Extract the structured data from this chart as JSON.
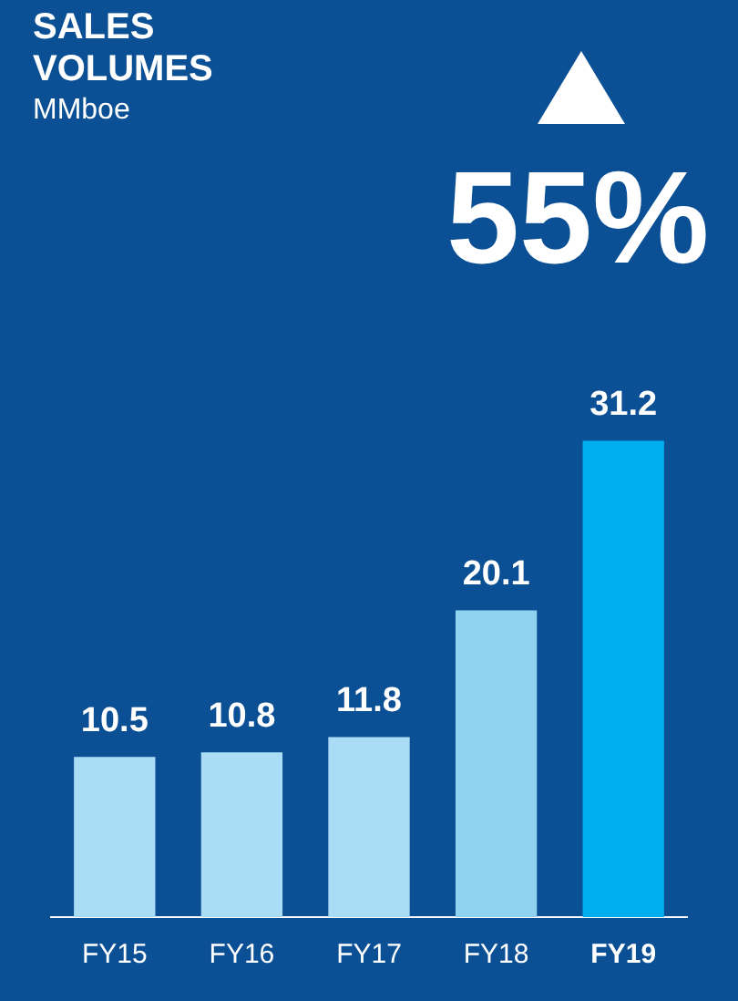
{
  "chart_data": {
    "type": "bar",
    "title": "SALES VOLUMES",
    "subtitle": "MMboe",
    "annotations": [
      "55%"
    ],
    "categories": [
      "FY15",
      "FY16",
      "FY17",
      "FY18",
      "FY19"
    ],
    "values": [
      10.5,
      10.8,
      11.8,
      20.1,
      31.2
    ],
    "colors": [
      "#aadcf6",
      "#aadcf6",
      "#aadcf6",
      "#8fd3f1",
      "#00aeef"
    ],
    "data_labels": true,
    "grid": false,
    "legend": false
  }
}
